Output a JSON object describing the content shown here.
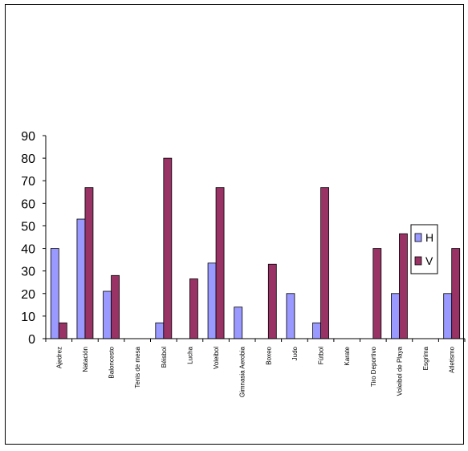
{
  "chart_data": {
    "type": "bar",
    "categories": [
      "Ajedrez",
      "Natación",
      "Baloncesto",
      "Tenis de mesa",
      "Béisbol",
      "Lucha",
      "Voleibol",
      "Gimnasia Aerobia",
      "Boxeo",
      "Judo",
      "Fútbol",
      "Karate",
      "Tiro Deportivo",
      "Voleibol de Playa",
      "Esgrima",
      "Atletismo"
    ],
    "series": [
      {
        "name": "H",
        "color": "#9999ff",
        "values": [
          40,
          53,
          21,
          0,
          7,
          0,
          33.5,
          14,
          0,
          20,
          7,
          0,
          0,
          20,
          0,
          20
        ]
      },
      {
        "name": "V",
        "color": "#993366",
        "values": [
          7,
          67,
          28,
          0,
          80,
          26.5,
          67,
          0,
          33,
          0,
          67,
          0,
          40,
          46.5,
          0,
          40
        ]
      }
    ],
    "yticks": [
      "0",
      "10",
      "20",
      "30",
      "40",
      "50",
      "60",
      "70",
      "80",
      "90"
    ],
    "ylim": [
      0,
      90
    ],
    "title": "",
    "xlabel": "",
    "ylabel": "",
    "grid": false,
    "legend": "right"
  }
}
